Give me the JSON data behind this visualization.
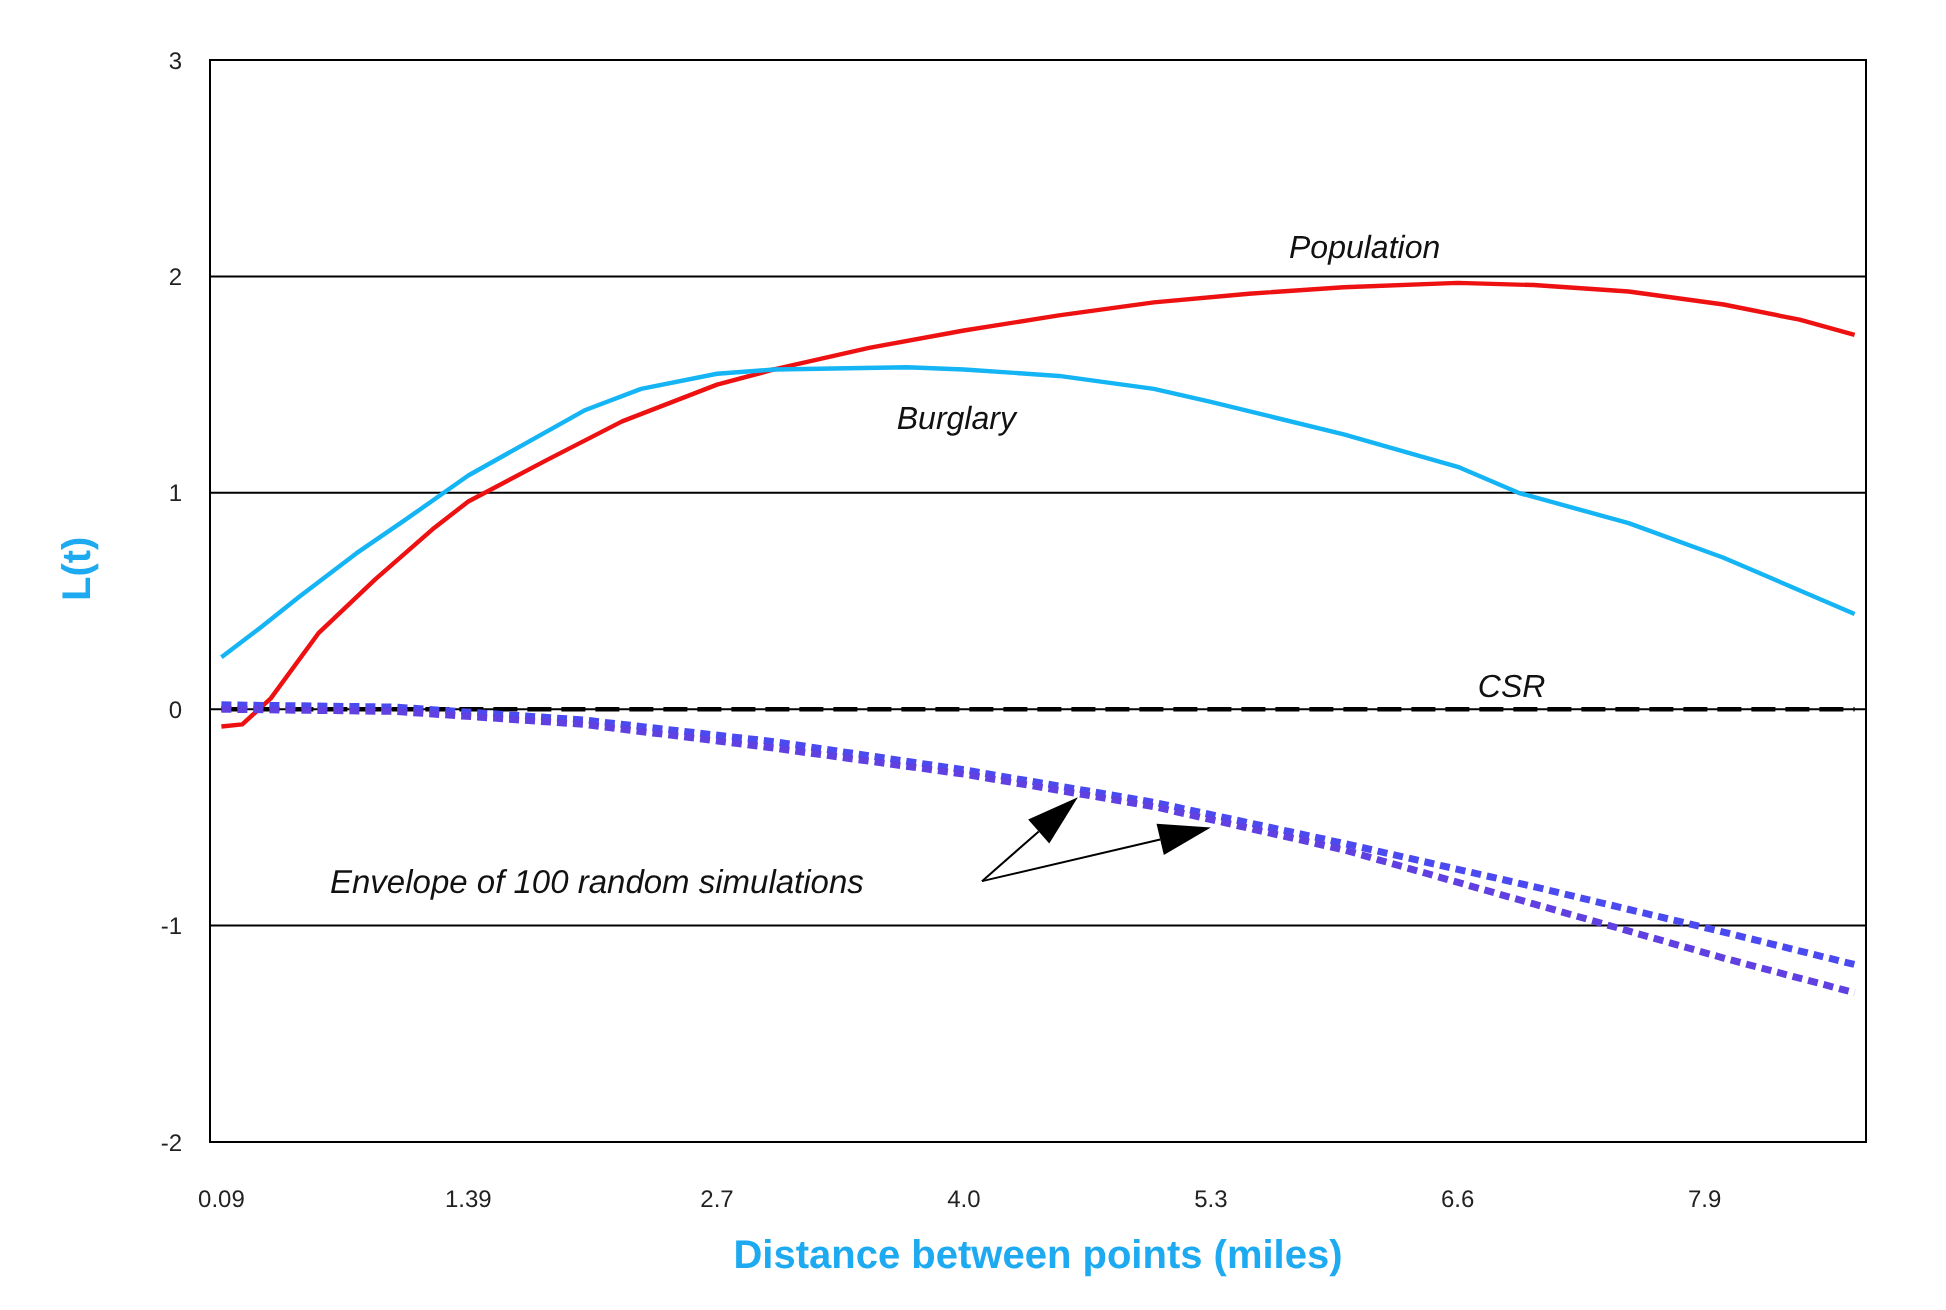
{
  "chart_data": {
    "type": "line",
    "xlabel": "Distance between points (miles)",
    "ylabel": "L(t)",
    "xlim": [
      0.03,
      8.75
    ],
    "xticks": [
      0.09,
      1.39,
      2.7,
      {
        "value": 4,
        "label": "4.0"
      },
      5.3,
      6.6,
      7.9
    ],
    "ylim": [
      -2,
      3
    ],
    "yticks": [
      -2,
      -1,
      0,
      1,
      2,
      3
    ],
    "grid": "y",
    "legend": false,
    "marker": "none",
    "annotations": [
      "Envelope of 100 random simulations"
    ],
    "series": [
      {
        "name": "Population",
        "color": "#ee1111",
        "line_style": "solid",
        "x": [
          0.09,
          0.2,
          0.35,
          0.6,
          0.9,
          1.2,
          1.39,
          1.8,
          2.2,
          2.7,
          3.0,
          3.5,
          4.0,
          4.5,
          5.0,
          5.5,
          6.0,
          6.6,
          7.0,
          7.5,
          8.0,
          8.4,
          8.69
        ],
        "values": [
          -0.08,
          -0.07,
          0.05,
          0.35,
          0.6,
          0.83,
          0.96,
          1.15,
          1.33,
          1.5,
          1.57,
          1.67,
          1.75,
          1.82,
          1.88,
          1.92,
          1.95,
          1.97,
          1.96,
          1.93,
          1.87,
          1.8,
          1.73
        ]
      },
      {
        "name": "Burglary",
        "color": "#14b4f5",
        "line_style": "solid",
        "x": [
          0.09,
          0.3,
          0.5,
          0.8,
          1.05,
          1.39,
          2.0,
          2.3,
          2.7,
          3.0,
          3.7,
          4.0,
          4.5,
          5.0,
          5.3,
          6.0,
          6.6,
          6.92,
          7.5,
          8.0,
          8.69
        ],
        "values": [
          0.24,
          0.38,
          0.52,
          0.72,
          0.87,
          1.08,
          1.38,
          1.48,
          1.55,
          1.57,
          1.58,
          1.57,
          1.54,
          1.48,
          1.42,
          1.27,
          1.12,
          1.0,
          0.86,
          0.7,
          0.44
        ]
      },
      {
        "name": "CSR",
        "color": "#000000",
        "line_style": "dashed",
        "x": [
          0.09,
          8.69
        ],
        "values": [
          0,
          0
        ]
      },
      {
        "color": "#4a4af0",
        "line_style": "dotted",
        "x": [
          0.09,
          1.0,
          2.0,
          3.0,
          4.0,
          5.0,
          6.0,
          7.0,
          8.0,
          8.69
        ],
        "values": [
          0.02,
          0.01,
          -0.05,
          -0.15,
          -0.28,
          -0.43,
          -0.62,
          -0.82,
          -1.03,
          -1.18
        ]
      },
      {
        "color": "#6040e0",
        "line_style": "dotted",
        "x": [
          0.09,
          1.0,
          2.0,
          3.0,
          4.0,
          5.0,
          6.0,
          7.0,
          8.0,
          8.69
        ],
        "values": [
          0,
          -0.01,
          -0.07,
          -0.18,
          -0.3,
          -0.45,
          -0.65,
          -0.9,
          -1.15,
          -1.31
        ]
      }
    ]
  }
}
